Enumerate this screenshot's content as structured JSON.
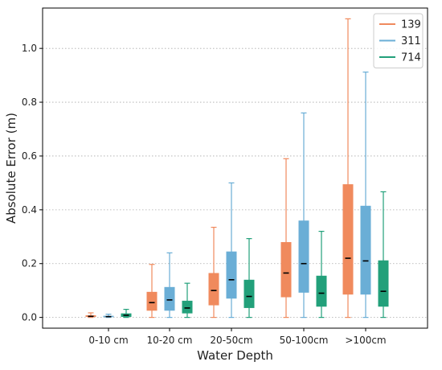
{
  "chart_data": {
    "type": "box",
    "title": "",
    "xlabel": "Water Depth",
    "ylabel": "Absolute Error (m)",
    "ylim": [
      -0.04,
      1.15
    ],
    "yticks": [
      "0.0",
      "0.2",
      "0.4",
      "0.6",
      "0.8",
      "1.0"
    ],
    "grid": "horizontal dotted",
    "legend_position": "top-right",
    "categories": [
      "0-10 cm",
      "10-20 cm",
      "20-50cm",
      "50-100cm",
      ">100cm"
    ],
    "series": [
      {
        "name": "139",
        "color": "#f08a5d",
        "boxes": [
          {
            "whisker_low": 0.0,
            "q1": 0.002,
            "median": 0.004,
            "q3": 0.008,
            "whisker_high": 0.017
          },
          {
            "whisker_low": 0.0,
            "q1": 0.025,
            "median": 0.055,
            "q3": 0.095,
            "whisker_high": 0.197
          },
          {
            "whisker_low": 0.0,
            "q1": 0.045,
            "median": 0.1,
            "q3": 0.165,
            "whisker_high": 0.335
          },
          {
            "whisker_low": 0.0,
            "q1": 0.075,
            "median": 0.165,
            "q3": 0.28,
            "whisker_high": 0.59
          },
          {
            "whisker_low": 0.0,
            "q1": 0.085,
            "median": 0.22,
            "q3": 0.495,
            "whisker_high": 1.11
          }
        ]
      },
      {
        "name": "311",
        "color": "#6aaed6",
        "boxes": [
          {
            "whisker_low": 0.0,
            "q1": 0.001,
            "median": 0.003,
            "q3": 0.006,
            "whisker_high": 0.012
          },
          {
            "whisker_low": 0.0,
            "q1": 0.025,
            "median": 0.065,
            "q3": 0.113,
            "whisker_high": 0.24
          },
          {
            "whisker_low": 0.0,
            "q1": 0.07,
            "median": 0.14,
            "q3": 0.245,
            "whisker_high": 0.5
          },
          {
            "whisker_low": 0.0,
            "q1": 0.092,
            "median": 0.2,
            "q3": 0.36,
            "whisker_high": 0.76
          },
          {
            "whisker_low": 0.0,
            "q1": 0.085,
            "median": 0.21,
            "q3": 0.415,
            "whisker_high": 0.912
          }
        ]
      },
      {
        "name": "714",
        "color": "#22a07a",
        "boxes": [
          {
            "whisker_low": 0.0,
            "q1": 0.002,
            "median": 0.008,
            "q3": 0.015,
            "whisker_high": 0.03
          },
          {
            "whisker_low": 0.0,
            "q1": 0.015,
            "median": 0.035,
            "q3": 0.062,
            "whisker_high": 0.127
          },
          {
            "whisker_low": 0.0,
            "q1": 0.035,
            "median": 0.078,
            "q3": 0.14,
            "whisker_high": 0.293
          },
          {
            "whisker_low": 0.0,
            "q1": 0.04,
            "median": 0.09,
            "q3": 0.155,
            "whisker_high": 0.32
          },
          {
            "whisker_low": 0.0,
            "q1": 0.04,
            "median": 0.097,
            "q3": 0.212,
            "whisker_high": 0.467
          }
        ]
      }
    ]
  }
}
